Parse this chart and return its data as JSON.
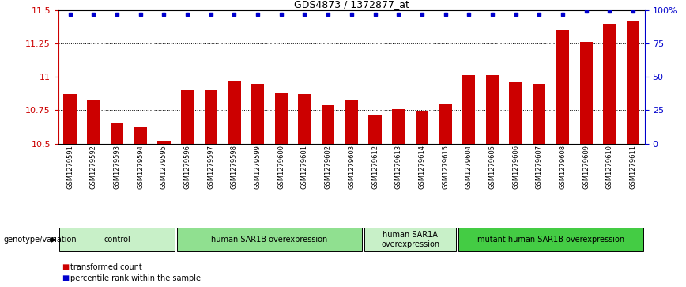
{
  "title": "GDS4873 / 1372877_at",
  "samples": [
    "GSM1279591",
    "GSM1279592",
    "GSM1279593",
    "GSM1279594",
    "GSM1279595",
    "GSM1279596",
    "GSM1279597",
    "GSM1279598",
    "GSM1279599",
    "GSM1279600",
    "GSM1279601",
    "GSM1279602",
    "GSM1279603",
    "GSM1279612",
    "GSM1279613",
    "GSM1279614",
    "GSM1279615",
    "GSM1279604",
    "GSM1279605",
    "GSM1279606",
    "GSM1279607",
    "GSM1279608",
    "GSM1279609",
    "GSM1279610",
    "GSM1279611"
  ],
  "bar_values": [
    10.87,
    10.83,
    10.65,
    10.62,
    10.52,
    10.9,
    10.9,
    10.97,
    10.95,
    10.88,
    10.87,
    10.79,
    10.83,
    10.71,
    10.76,
    10.74,
    10.8,
    11.01,
    11.01,
    10.96,
    10.95,
    11.35,
    11.26,
    11.4,
    11.42
  ],
  "percentile_values": [
    97,
    97,
    97,
    97,
    97,
    97,
    97,
    97,
    97,
    97,
    97,
    97,
    97,
    97,
    97,
    97,
    97,
    97,
    97,
    97,
    97,
    97,
    99,
    99,
    99
  ],
  "bar_color": "#cc0000",
  "dot_color": "#0000cc",
  "ylim_left": [
    10.5,
    11.5
  ],
  "ylim_right": [
    0,
    100
  ],
  "yticks_left": [
    10.5,
    10.75,
    11.0,
    11.25,
    11.5
  ],
  "ytick_labels_left": [
    "10.5",
    "10.75",
    "11",
    "11.25",
    "11.5"
  ],
  "yticks_right": [
    0,
    25,
    50,
    75,
    100
  ],
  "ytick_labels_right": [
    "0",
    "25",
    "50",
    "75",
    "100%"
  ],
  "grid_lines": [
    10.75,
    11.0,
    11.25
  ],
  "groups": [
    {
      "label": "control",
      "start": 0,
      "end": 5,
      "color": "#c8f0c8"
    },
    {
      "label": "human SAR1B overexpression",
      "start": 5,
      "end": 13,
      "color": "#90e090"
    },
    {
      "label": "human SAR1A\noverexpression",
      "start": 13,
      "end": 17,
      "color": "#c8f0c8"
    },
    {
      "label": "mutant human SAR1B overexpression",
      "start": 17,
      "end": 25,
      "color": "#44cc44"
    }
  ],
  "group_row_label": "genotype/variation",
  "legend_items": [
    {
      "color": "#cc0000",
      "label": "transformed count"
    },
    {
      "color": "#0000cc",
      "label": "percentile rank within the sample"
    }
  ],
  "background_color": "#ffffff",
  "tick_area_color": "#cccccc"
}
